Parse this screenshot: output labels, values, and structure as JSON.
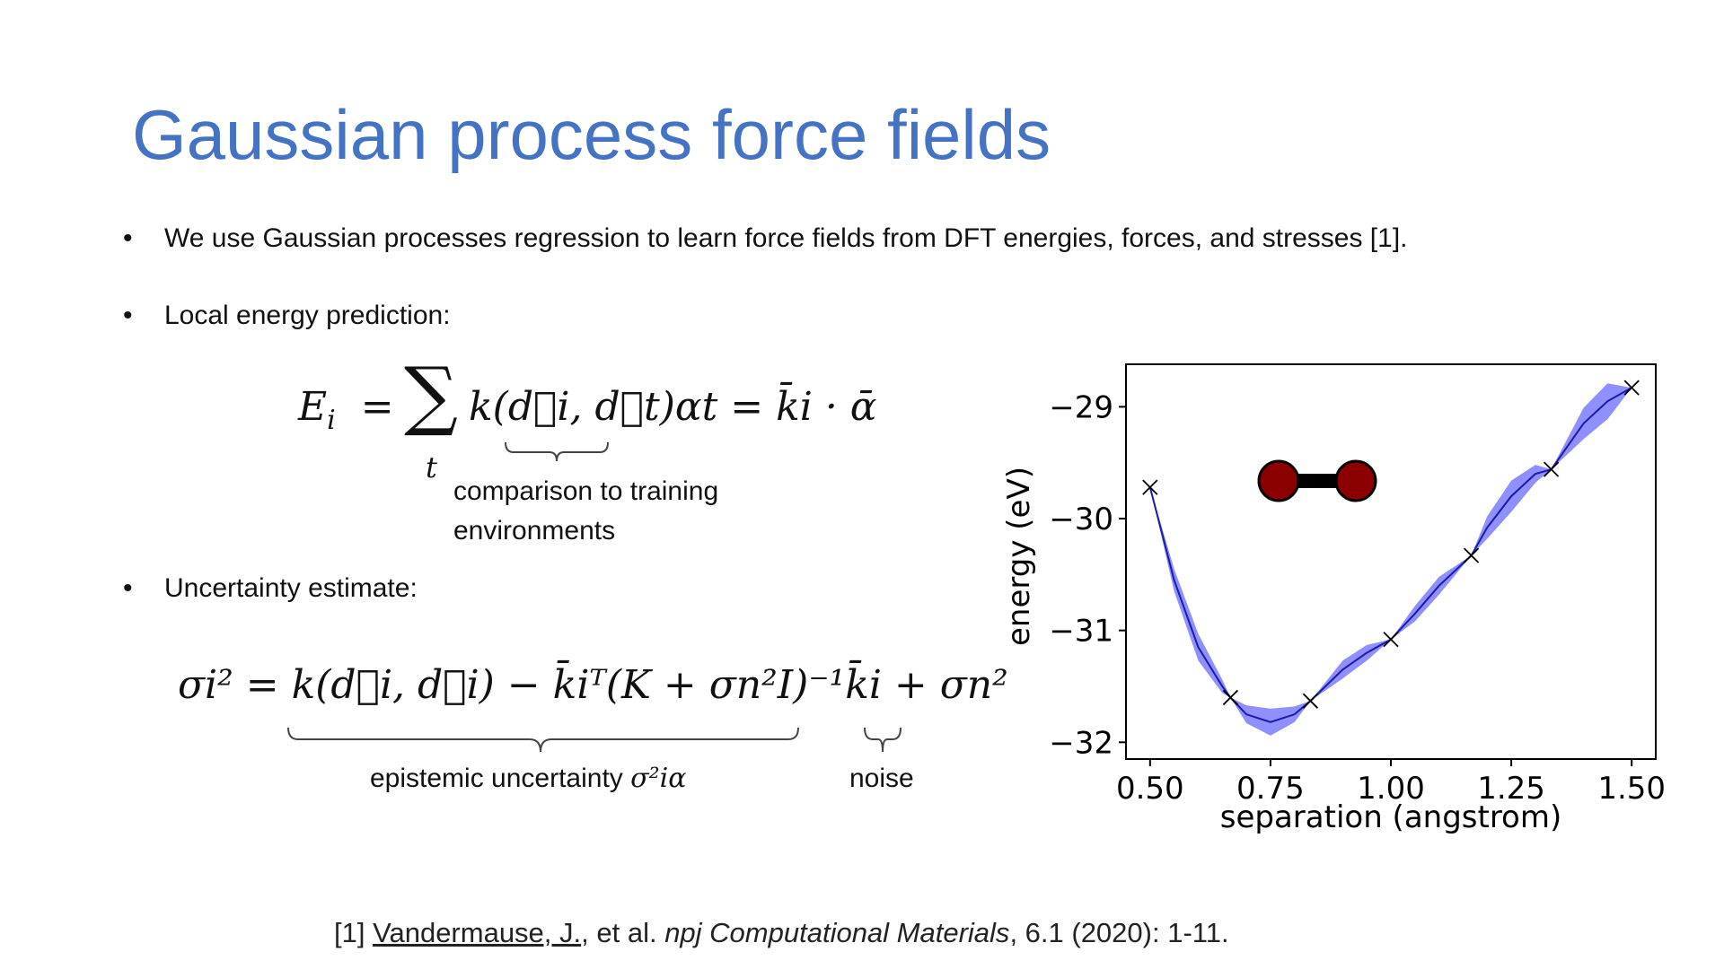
{
  "slide": {
    "title": "Gaussian process force fields",
    "bullets": [
      "We use Gaussian processes regression to learn force fields from DFT energies, forces, and stresses [1].",
      "Local energy prediction:",
      "Uncertainty estimate:"
    ],
    "bullet_marker": "•",
    "equation_energy": {
      "lhs": "E",
      "lhs_sub": "i",
      "eq": "=",
      "sum": "∑",
      "sum_sub": "t",
      "term": "k(d⃗i, d⃗t)αt = k̄i · ᾱ"
    },
    "annotation_energy_line1": "comparison to training",
    "annotation_energy_line2": "environments",
    "equation_uncertainty": {
      "text": "σi² = k(d⃗i, d⃗i) − k̄iᵀ(K + σn²I)⁻¹k̄i + σn²"
    },
    "annotation_epistemic": "epistemic uncertainty",
    "annotation_epistemic_symbol": "σ²iα",
    "annotation_noise": "noise",
    "reference": {
      "prefix": "[1] ",
      "author": "Vandermause, J.",
      "mid": ", et al. ",
      "journal": "npj Computational Materials",
      "suffix": ", 6.1 (2020): 1-11."
    }
  },
  "colors": {
    "title": "#4472c4",
    "band": "#7b7bff",
    "mean_line": "#1a1aaa",
    "atom": "#8b0000"
  },
  "chart_data": {
    "type": "line",
    "xlabel": "separation (angstrom)",
    "ylabel": "energy (eV)",
    "xlim": [
      0.45,
      1.55
    ],
    "ylim": [
      -32.15,
      -28.62
    ],
    "xticks": [
      0.5,
      0.75,
      1.0,
      1.25,
      1.5
    ],
    "xtick_labels": [
      "0.50",
      "0.75",
      "1.00",
      "1.25",
      "1.50"
    ],
    "yticks": [
      -29,
      -30,
      -31,
      -32
    ],
    "ytick_labels": [
      "−29",
      "−30",
      "−31",
      "−32"
    ],
    "training_points": {
      "x": [
        0.5,
        0.667,
        0.833,
        1.0,
        1.167,
        1.333,
        1.5
      ],
      "y": [
        -29.72,
        -31.6,
        -31.63,
        -31.08,
        -30.33,
        -29.56,
        -28.83
      ]
    },
    "mean": {
      "x": [
        0.5,
        0.55,
        0.6,
        0.65,
        0.667,
        0.7,
        0.75,
        0.8,
        0.833,
        0.9,
        0.95,
        1.0,
        1.05,
        1.1,
        1.167,
        1.2,
        1.25,
        1.3,
        1.333,
        1.4,
        1.45,
        1.5
      ],
      "y": [
        -29.72,
        -30.55,
        -31.15,
        -31.5,
        -31.6,
        -31.75,
        -31.82,
        -31.75,
        -31.63,
        -31.35,
        -31.2,
        -31.08,
        -30.85,
        -30.6,
        -30.33,
        -30.08,
        -29.8,
        -29.6,
        -29.56,
        -29.15,
        -28.95,
        -28.83
      ]
    },
    "std": {
      "x": [
        0.5,
        0.55,
        0.6,
        0.65,
        0.667,
        0.7,
        0.75,
        0.8,
        0.833,
        0.9,
        0.95,
        1.0,
        1.05,
        1.1,
        1.167,
        1.2,
        1.25,
        1.3,
        1.333,
        1.4,
        1.45,
        1.5
      ],
      "y": [
        0.0,
        0.1,
        0.12,
        0.06,
        0.0,
        0.08,
        0.12,
        0.07,
        0.0,
        0.08,
        0.07,
        0.0,
        0.07,
        0.08,
        0.0,
        0.1,
        0.14,
        0.08,
        0.0,
        0.14,
        0.16,
        0.0
      ]
    },
    "grid": false,
    "legend": "none"
  }
}
